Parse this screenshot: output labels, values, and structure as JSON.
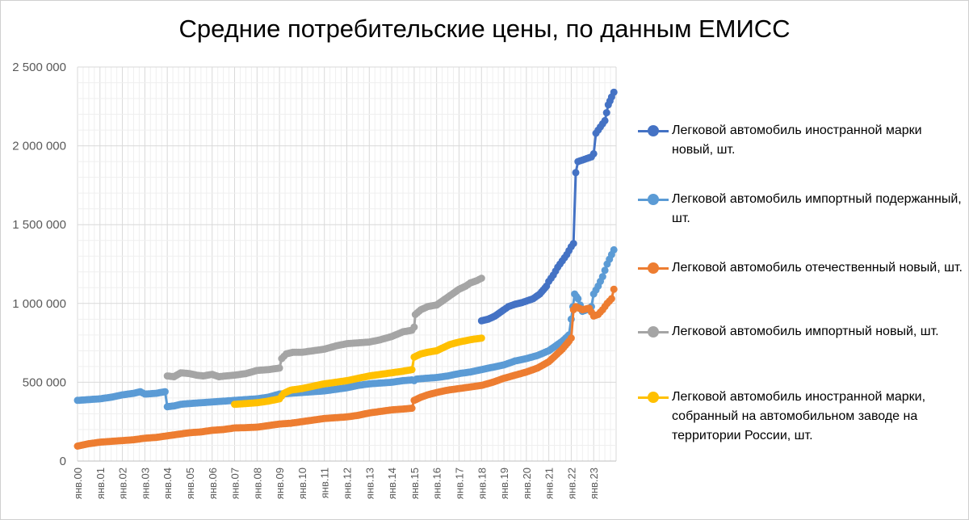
{
  "chart_data": {
    "type": "line",
    "title": "Средние потребительские цены, по данным ЕМИСС",
    "xlabel": "",
    "ylabel": "",
    "ylim": [
      0,
      2500000
    ],
    "yticks": [
      0,
      500000,
      1000000,
      1500000,
      2000000,
      2500000
    ],
    "ytick_labels": [
      "0",
      "500 000",
      "1 000 000",
      "1 500 000",
      "2 000 000",
      "2 500 000"
    ],
    "xtick_labels": [
      "янв.00",
      "янв.01",
      "янв.02",
      "янв.03",
      "янв.04",
      "янв.05",
      "янв.06",
      "янв.07",
      "янв.08",
      "янв.09",
      "янв.10",
      "янв.11",
      "янв.12",
      "янв.13",
      "янв.14",
      "янв.15",
      "янв.16",
      "янв.17",
      "янв.18",
      "янв.19",
      "янв.20",
      "янв.21",
      "янв.22",
      "янв.23"
    ],
    "grid": true,
    "legend_position": "right",
    "series": [
      {
        "name": "Легковой автомобиль иностранной марки новый, шт.",
        "color": "#4472C4",
        "points": [
          [
            2018.0,
            890000
          ],
          [
            2018.3,
            900000
          ],
          [
            2018.6,
            920000
          ],
          [
            2019.0,
            960000
          ],
          [
            2019.2,
            980000
          ],
          [
            2019.5,
            995000
          ],
          [
            2019.8,
            1005000
          ],
          [
            2020.0,
            1015000
          ],
          [
            2020.3,
            1030000
          ],
          [
            2020.6,
            1060000
          ],
          [
            2020.9,
            1110000
          ],
          [
            2021.0,
            1140000
          ],
          [
            2021.2,
            1180000
          ],
          [
            2021.4,
            1230000
          ],
          [
            2021.6,
            1270000
          ],
          [
            2021.8,
            1310000
          ],
          [
            2022.0,
            1360000
          ],
          [
            2022.1,
            1380000
          ],
          [
            2022.2,
            1830000
          ],
          [
            2022.3,
            1900000
          ],
          [
            2022.5,
            1910000
          ],
          [
            2022.7,
            1920000
          ],
          [
            2022.9,
            1930000
          ],
          [
            2023.0,
            1950000
          ],
          [
            2023.1,
            2080000
          ],
          [
            2023.3,
            2120000
          ],
          [
            2023.5,
            2160000
          ],
          [
            2023.65,
            2260000
          ],
          [
            2023.8,
            2310000
          ],
          [
            2023.9,
            2340000
          ]
        ]
      },
      {
        "name": "Легковой автомобиль импортный подержанный, шт.",
        "color": "#5B9BD5",
        "points": [
          [
            2000.0,
            385000
          ],
          [
            2000.5,
            390000
          ],
          [
            2001.0,
            395000
          ],
          [
            2001.5,
            405000
          ],
          [
            2002.0,
            420000
          ],
          [
            2002.5,
            430000
          ],
          [
            2002.8,
            440000
          ],
          [
            2003.0,
            425000
          ],
          [
            2003.5,
            430000
          ],
          [
            2003.9,
            440000
          ],
          [
            2004.0,
            345000
          ],
          [
            2004.3,
            350000
          ],
          [
            2004.6,
            360000
          ],
          [
            2005.0,
            365000
          ],
          [
            2005.5,
            370000
          ],
          [
            2006.0,
            375000
          ],
          [
            2006.5,
            380000
          ],
          [
            2007.0,
            385000
          ],
          [
            2007.5,
            390000
          ],
          [
            2008.0,
            395000
          ],
          [
            2008.5,
            405000
          ],
          [
            2009.0,
            425000
          ],
          [
            2009.5,
            430000
          ],
          [
            2010.0,
            435000
          ],
          [
            2010.5,
            440000
          ],
          [
            2011.0,
            445000
          ],
          [
            2011.5,
            455000
          ],
          [
            2012.0,
            465000
          ],
          [
            2012.5,
            480000
          ],
          [
            2013.0,
            490000
          ],
          [
            2013.5,
            495000
          ],
          [
            2014.0,
            500000
          ],
          [
            2014.5,
            510000
          ],
          [
            2014.9,
            515000
          ],
          [
            2015.0,
            510000
          ],
          [
            2015.1,
            520000
          ],
          [
            2015.5,
            525000
          ],
          [
            2016.0,
            530000
          ],
          [
            2016.5,
            540000
          ],
          [
            2017.0,
            555000
          ],
          [
            2017.5,
            565000
          ],
          [
            2018.0,
            580000
          ],
          [
            2018.5,
            595000
          ],
          [
            2019.0,
            610000
          ],
          [
            2019.5,
            635000
          ],
          [
            2020.0,
            650000
          ],
          [
            2020.5,
            670000
          ],
          [
            2021.0,
            700000
          ],
          [
            2021.3,
            730000
          ],
          [
            2021.6,
            760000
          ],
          [
            2021.9,
            800000
          ],
          [
            2022.0,
            900000
          ],
          [
            2022.15,
            1060000
          ],
          [
            2022.3,
            1030000
          ],
          [
            2022.5,
            950000
          ],
          [
            2022.7,
            960000
          ],
          [
            2022.9,
            980000
          ],
          [
            2023.0,
            1060000
          ],
          [
            2023.2,
            1110000
          ],
          [
            2023.4,
            1170000
          ],
          [
            2023.6,
            1250000
          ],
          [
            2023.8,
            1310000
          ],
          [
            2023.9,
            1340000
          ]
        ]
      },
      {
        "name": "Легковой автомобиль отечественный новый, шт.",
        "color": "#ED7D31",
        "points": [
          [
            2000.0,
            95000
          ],
          [
            2000.5,
            110000
          ],
          [
            2001.0,
            120000
          ],
          [
            2001.5,
            125000
          ],
          [
            2002.0,
            130000
          ],
          [
            2002.5,
            135000
          ],
          [
            2003.0,
            145000
          ],
          [
            2003.5,
            150000
          ],
          [
            2004.0,
            160000
          ],
          [
            2004.5,
            170000
          ],
          [
            2005.0,
            180000
          ],
          [
            2005.5,
            185000
          ],
          [
            2006.0,
            195000
          ],
          [
            2006.5,
            200000
          ],
          [
            2007.0,
            210000
          ],
          [
            2007.5,
            212000
          ],
          [
            2008.0,
            215000
          ],
          [
            2008.5,
            225000
          ],
          [
            2009.0,
            235000
          ],
          [
            2009.5,
            240000
          ],
          [
            2010.0,
            250000
          ],
          [
            2010.5,
            260000
          ],
          [
            2011.0,
            270000
          ],
          [
            2011.5,
            275000
          ],
          [
            2012.0,
            280000
          ],
          [
            2012.5,
            290000
          ],
          [
            2013.0,
            305000
          ],
          [
            2013.5,
            315000
          ],
          [
            2014.0,
            325000
          ],
          [
            2014.5,
            330000
          ],
          [
            2014.9,
            335000
          ],
          [
            2015.0,
            385000
          ],
          [
            2015.3,
            405000
          ],
          [
            2015.6,
            420000
          ],
          [
            2016.0,
            435000
          ],
          [
            2016.5,
            450000
          ],
          [
            2017.0,
            460000
          ],
          [
            2017.5,
            470000
          ],
          [
            2018.0,
            480000
          ],
          [
            2018.5,
            500000
          ],
          [
            2019.0,
            525000
          ],
          [
            2019.5,
            545000
          ],
          [
            2020.0,
            565000
          ],
          [
            2020.5,
            590000
          ],
          [
            2021.0,
            630000
          ],
          [
            2021.3,
            670000
          ],
          [
            2021.6,
            710000
          ],
          [
            2021.9,
            760000
          ],
          [
            2022.0,
            780000
          ],
          [
            2022.1,
            960000
          ],
          [
            2022.2,
            980000
          ],
          [
            2022.5,
            960000
          ],
          [
            2022.8,
            970000
          ],
          [
            2023.0,
            920000
          ],
          [
            2023.2,
            930000
          ],
          [
            2023.4,
            960000
          ],
          [
            2023.6,
            1000000
          ],
          [
            2023.8,
            1030000
          ],
          [
            2023.9,
            1090000
          ]
        ]
      },
      {
        "name": "Легковой автомобиль импортный новый, шт.",
        "color": "#A5A5A5",
        "points": [
          [
            2004.0,
            540000
          ],
          [
            2004.3,
            535000
          ],
          [
            2004.6,
            560000
          ],
          [
            2005.0,
            555000
          ],
          [
            2005.3,
            545000
          ],
          [
            2005.6,
            540000
          ],
          [
            2006.0,
            550000
          ],
          [
            2006.3,
            535000
          ],
          [
            2006.6,
            540000
          ],
          [
            2007.0,
            545000
          ],
          [
            2007.5,
            555000
          ],
          [
            2008.0,
            575000
          ],
          [
            2008.5,
            580000
          ],
          [
            2009.0,
            590000
          ],
          [
            2009.1,
            650000
          ],
          [
            2009.3,
            680000
          ],
          [
            2009.6,
            690000
          ],
          [
            2010.0,
            690000
          ],
          [
            2010.5,
            700000
          ],
          [
            2011.0,
            710000
          ],
          [
            2011.5,
            730000
          ],
          [
            2012.0,
            745000
          ],
          [
            2012.5,
            750000
          ],
          [
            2013.0,
            755000
          ],
          [
            2013.5,
            770000
          ],
          [
            2014.0,
            790000
          ],
          [
            2014.5,
            820000
          ],
          [
            2014.9,
            830000
          ],
          [
            2015.0,
            850000
          ],
          [
            2015.05,
            930000
          ],
          [
            2015.3,
            960000
          ],
          [
            2015.6,
            980000
          ],
          [
            2016.0,
            990000
          ],
          [
            2016.3,
            1020000
          ],
          [
            2016.6,
            1050000
          ],
          [
            2017.0,
            1090000
          ],
          [
            2017.3,
            1110000
          ],
          [
            2017.5,
            1130000
          ],
          [
            2017.8,
            1145000
          ],
          [
            2018.0,
            1160000
          ]
        ]
      },
      {
        "name": "Легковой автомобиль иностранной марки, собранный  на автомобильном заводе на территории России, шт.",
        "color": "#FFC000",
        "points": [
          [
            2007.0,
            360000
          ],
          [
            2007.5,
            365000
          ],
          [
            2008.0,
            370000
          ],
          [
            2008.5,
            380000
          ],
          [
            2009.0,
            395000
          ],
          [
            2009.2,
            430000
          ],
          [
            2009.5,
            450000
          ],
          [
            2010.0,
            460000
          ],
          [
            2010.5,
            475000
          ],
          [
            2011.0,
            490000
          ],
          [
            2011.5,
            500000
          ],
          [
            2012.0,
            510000
          ],
          [
            2012.5,
            525000
          ],
          [
            2013.0,
            540000
          ],
          [
            2013.5,
            550000
          ],
          [
            2014.0,
            560000
          ],
          [
            2014.5,
            570000
          ],
          [
            2014.9,
            580000
          ],
          [
            2015.0,
            660000
          ],
          [
            2015.3,
            680000
          ],
          [
            2015.6,
            690000
          ],
          [
            2016.0,
            700000
          ],
          [
            2016.3,
            720000
          ],
          [
            2016.6,
            740000
          ],
          [
            2017.0,
            755000
          ],
          [
            2017.5,
            770000
          ],
          [
            2018.0,
            780000
          ]
        ]
      }
    ]
  }
}
